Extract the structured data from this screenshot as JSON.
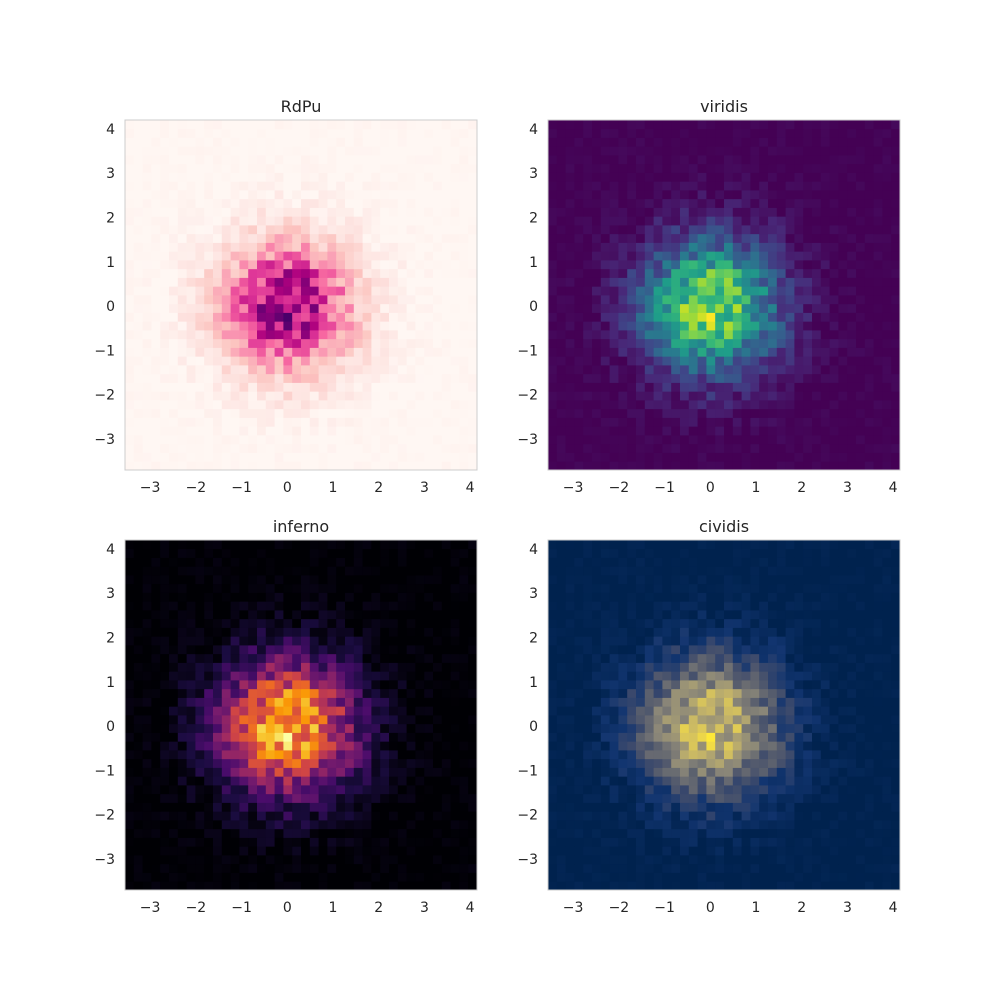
{
  "chart_data": [
    {
      "type": "heatmap",
      "title": "RdPu",
      "colormap": "RdPu",
      "colors": [
        "#fff7f3",
        "#fde0dd",
        "#fcc5c0",
        "#fa9fb5",
        "#f768a1",
        "#dd3497",
        "#ae017e",
        "#7a0177",
        "#49006a"
      ],
      "xlim": [
        -3.55,
        4.15
      ],
      "ylim": [
        -3.7,
        4.2
      ],
      "x_ticks": [
        -3,
        -2,
        -1,
        0,
        1,
        2,
        3,
        4
      ],
      "y_ticks": [
        -3,
        -2,
        -1,
        0,
        1,
        2,
        3,
        4
      ],
      "x_tick_labels": [
        "−3",
        "−2",
        "−1",
        "0",
        "1",
        "2",
        "3",
        "4"
      ],
      "y_tick_labels": [
        "−3",
        "−2",
        "−1",
        "0",
        "1",
        "2",
        "3",
        "4"
      ],
      "bins": 40,
      "distribution": "2D standard normal histogram",
      "center": [
        0,
        0
      ],
      "sigma": 1.0,
      "grid": false
    },
    {
      "type": "heatmap",
      "title": "viridis",
      "colormap": "viridis",
      "colors": [
        "#440154",
        "#482878",
        "#3e4989",
        "#31688e",
        "#26828e",
        "#1f9e89",
        "#35b779",
        "#6ece58",
        "#b5de2b",
        "#fde725"
      ],
      "xlim": [
        -3.55,
        4.15
      ],
      "ylim": [
        -3.7,
        4.2
      ],
      "x_ticks": [
        -3,
        -2,
        -1,
        0,
        1,
        2,
        3,
        4
      ],
      "y_ticks": [
        -3,
        -2,
        -1,
        0,
        1,
        2,
        3,
        4
      ],
      "x_tick_labels": [
        "−3",
        "−2",
        "−1",
        "0",
        "1",
        "2",
        "3",
        "4"
      ],
      "y_tick_labels": [
        "−3",
        "−2",
        "−1",
        "0",
        "1",
        "2",
        "3",
        "4"
      ],
      "bins": 40,
      "distribution": "2D standard normal histogram",
      "center": [
        0,
        0
      ],
      "sigma": 1.0,
      "grid": false
    },
    {
      "type": "heatmap",
      "title": "inferno",
      "colormap": "inferno",
      "colors": [
        "#000004",
        "#1b0c41",
        "#4a0c6b",
        "#781c6d",
        "#a52c60",
        "#cf4446",
        "#ed6925",
        "#fb9b06",
        "#f7d13d",
        "#fcffa4"
      ],
      "xlim": [
        -3.55,
        4.15
      ],
      "ylim": [
        -3.7,
        4.2
      ],
      "x_ticks": [
        -3,
        -2,
        -1,
        0,
        1,
        2,
        3,
        4
      ],
      "y_ticks": [
        -3,
        -2,
        -1,
        0,
        1,
        2,
        3,
        4
      ],
      "x_tick_labels": [
        "−3",
        "−2",
        "−1",
        "0",
        "1",
        "2",
        "3",
        "4"
      ],
      "y_tick_labels": [
        "−3",
        "−2",
        "−1",
        "0",
        "1",
        "2",
        "3",
        "4"
      ],
      "bins": 40,
      "distribution": "2D standard normal histogram",
      "center": [
        0,
        0
      ],
      "sigma": 1.0,
      "grid": false
    },
    {
      "type": "heatmap",
      "title": "cividis",
      "colormap": "cividis",
      "colors": [
        "#00224e",
        "#123570",
        "#3b496c",
        "#575d6d",
        "#707173",
        "#8a8678",
        "#a59c74",
        "#c3b369",
        "#e1cc55",
        "#fee838"
      ],
      "xlim": [
        -3.55,
        4.15
      ],
      "ylim": [
        -3.7,
        4.2
      ],
      "x_ticks": [
        -3,
        -2,
        -1,
        0,
        1,
        2,
        3,
        4
      ],
      "y_ticks": [
        -3,
        -2,
        -1,
        0,
        1,
        2,
        3,
        4
      ],
      "x_tick_labels": [
        "−3",
        "−2",
        "−1",
        "0",
        "1",
        "2",
        "3",
        "4"
      ],
      "y_tick_labels": [
        "−3",
        "−2",
        "−1",
        "0",
        "1",
        "2",
        "3",
        "4"
      ],
      "bins": 40,
      "distribution": "2D standard normal histogram",
      "center": [
        0,
        0
      ],
      "sigma": 1.0,
      "grid": false
    }
  ]
}
